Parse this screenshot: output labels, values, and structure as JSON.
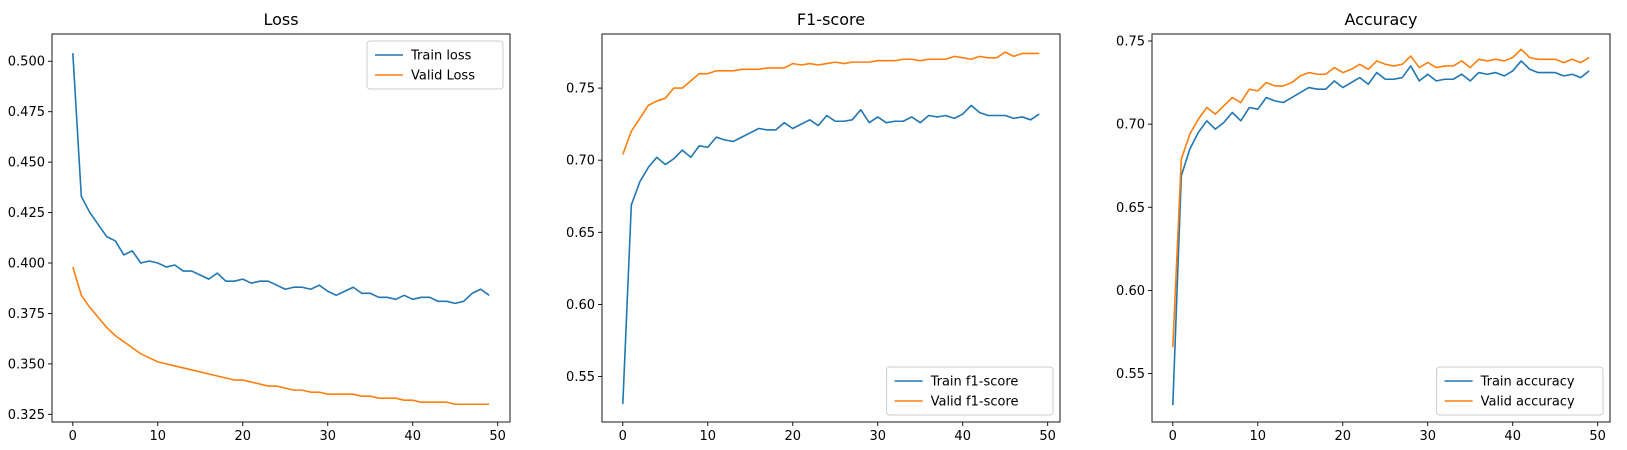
{
  "chart_data": [
    {
      "type": "line",
      "title": "Loss",
      "xlabel": "",
      "ylabel": "",
      "xlim": [
        -2.45,
        51.45
      ],
      "ylim": [
        0.3212,
        0.5135
      ],
      "xticks": [
        0,
        10,
        20,
        30,
        40,
        50
      ],
      "yticks": [
        0.325,
        0.35,
        0.375,
        0.4,
        0.425,
        0.45,
        0.475,
        0.5
      ],
      "ytick_labels": [
        "0.325",
        "0.350",
        "0.375",
        "0.400",
        "0.425",
        "0.450",
        "0.475",
        "0.500"
      ],
      "grid": false,
      "legend": "top-right",
      "colors": {
        "train": "#1f77b4",
        "valid": "#ff7f0e"
      },
      "series": [
        {
          "name": "Train loss",
          "x": [
            0,
            1,
            2,
            3,
            4,
            5,
            6,
            7,
            8,
            9,
            10,
            11,
            12,
            13,
            14,
            15,
            16,
            17,
            18,
            19,
            20,
            21,
            22,
            23,
            24,
            25,
            26,
            27,
            28,
            29,
            30,
            31,
            32,
            33,
            34,
            35,
            36,
            37,
            38,
            39,
            40,
            41,
            42,
            43,
            44,
            45,
            46,
            47,
            48,
            49
          ],
          "values": [
            0.504,
            0.433,
            0.425,
            0.419,
            0.413,
            0.411,
            0.404,
            0.406,
            0.4,
            0.401,
            0.4,
            0.398,
            0.399,
            0.396,
            0.396,
            0.394,
            0.392,
            0.395,
            0.391,
            0.391,
            0.392,
            0.39,
            0.391,
            0.391,
            0.389,
            0.387,
            0.388,
            0.388,
            0.387,
            0.389,
            0.386,
            0.384,
            0.386,
            0.388,
            0.385,
            0.385,
            0.383,
            0.383,
            0.382,
            0.384,
            0.382,
            0.383,
            0.383,
            0.381,
            0.381,
            0.38,
            0.381,
            0.385,
            0.387,
            0.384
          ]
        },
        {
          "name": "Valid Loss",
          "x": [
            0,
            1,
            2,
            3,
            4,
            5,
            6,
            7,
            8,
            9,
            10,
            11,
            12,
            13,
            14,
            15,
            16,
            17,
            18,
            19,
            20,
            21,
            22,
            23,
            24,
            25,
            26,
            27,
            28,
            29,
            30,
            31,
            32,
            33,
            34,
            35,
            36,
            37,
            38,
            39,
            40,
            41,
            42,
            43,
            44,
            45,
            46,
            47,
            48,
            49
          ],
          "values": [
            0.398,
            0.384,
            0.378,
            0.373,
            0.368,
            0.364,
            0.361,
            0.358,
            0.355,
            0.353,
            0.351,
            0.35,
            0.349,
            0.348,
            0.347,
            0.346,
            0.345,
            0.344,
            0.343,
            0.342,
            0.342,
            0.341,
            0.34,
            0.339,
            0.339,
            0.338,
            0.337,
            0.337,
            0.336,
            0.336,
            0.335,
            0.335,
            0.335,
            0.335,
            0.334,
            0.334,
            0.333,
            0.333,
            0.333,
            0.332,
            0.332,
            0.331,
            0.331,
            0.331,
            0.331,
            0.33,
            0.33,
            0.33,
            0.33,
            0.33
          ]
        }
      ]
    },
    {
      "type": "line",
      "title": "F1-score",
      "xlabel": "",
      "ylabel": "",
      "xlim": [
        -2.45,
        51.45
      ],
      "ylim": [
        0.5185,
        0.7875
      ],
      "xticks": [
        0,
        10,
        20,
        30,
        40,
        50
      ],
      "yticks": [
        0.55,
        0.6,
        0.65,
        0.7,
        0.75
      ],
      "ytick_labels": [
        "0.55",
        "0.60",
        "0.65",
        "0.70",
        "0.75"
      ],
      "grid": false,
      "legend": "bottom-right",
      "colors": {
        "train": "#1f77b4",
        "valid": "#ff7f0e"
      },
      "series": [
        {
          "name": "Train f1-score",
          "x": [
            0,
            1,
            2,
            3,
            4,
            5,
            6,
            7,
            8,
            9,
            10,
            11,
            12,
            13,
            14,
            15,
            16,
            17,
            18,
            19,
            20,
            21,
            22,
            23,
            24,
            25,
            26,
            27,
            28,
            29,
            30,
            31,
            32,
            33,
            34,
            35,
            36,
            37,
            38,
            39,
            40,
            41,
            42,
            43,
            44,
            45,
            46,
            47,
            48,
            49
          ],
          "values": [
            0.531,
            0.669,
            0.685,
            0.695,
            0.702,
            0.697,
            0.701,
            0.707,
            0.702,
            0.71,
            0.709,
            0.716,
            0.714,
            0.713,
            0.716,
            0.719,
            0.722,
            0.721,
            0.721,
            0.726,
            0.722,
            0.725,
            0.728,
            0.724,
            0.731,
            0.727,
            0.727,
            0.728,
            0.735,
            0.726,
            0.73,
            0.726,
            0.727,
            0.727,
            0.73,
            0.726,
            0.731,
            0.73,
            0.731,
            0.729,
            0.732,
            0.738,
            0.733,
            0.731,
            0.731,
            0.731,
            0.729,
            0.73,
            0.728,
            0.732
          ]
        },
        {
          "name": "Valid f1-score",
          "x": [
            0,
            1,
            2,
            3,
            4,
            5,
            6,
            7,
            8,
            9,
            10,
            11,
            12,
            13,
            14,
            15,
            16,
            17,
            18,
            19,
            20,
            21,
            22,
            23,
            24,
            25,
            26,
            27,
            28,
            29,
            30,
            31,
            32,
            33,
            34,
            35,
            36,
            37,
            38,
            39,
            40,
            41,
            42,
            43,
            44,
            45,
            46,
            47,
            48,
            49
          ],
          "values": [
            0.704,
            0.72,
            0.729,
            0.738,
            0.741,
            0.743,
            0.75,
            0.75,
            0.755,
            0.76,
            0.76,
            0.762,
            0.762,
            0.762,
            0.763,
            0.763,
            0.763,
            0.764,
            0.764,
            0.764,
            0.767,
            0.766,
            0.767,
            0.766,
            0.767,
            0.768,
            0.767,
            0.768,
            0.768,
            0.768,
            0.769,
            0.769,
            0.769,
            0.77,
            0.77,
            0.769,
            0.77,
            0.77,
            0.77,
            0.772,
            0.771,
            0.77,
            0.772,
            0.771,
            0.771,
            0.775,
            0.772,
            0.774,
            0.774,
            0.774
          ]
        }
      ]
    },
    {
      "type": "line",
      "title": "Accuracy",
      "xlabel": "",
      "ylabel": "",
      "xlim": [
        -2.45,
        51.45
      ],
      "ylim": [
        0.5209,
        0.7542
      ],
      "xticks": [
        0,
        10,
        20,
        30,
        40,
        50
      ],
      "yticks": [
        0.55,
        0.6,
        0.65,
        0.7,
        0.75
      ],
      "ytick_labels": [
        "0.55",
        "0.60",
        "0.65",
        "0.70",
        "0.75"
      ],
      "grid": false,
      "legend": "bottom-right",
      "colors": {
        "train": "#1f77b4",
        "valid": "#ff7f0e"
      },
      "series": [
        {
          "name": "Train accuracy",
          "x": [
            0,
            1,
            2,
            3,
            4,
            5,
            6,
            7,
            8,
            9,
            10,
            11,
            12,
            13,
            14,
            15,
            16,
            17,
            18,
            19,
            20,
            21,
            22,
            23,
            24,
            25,
            26,
            27,
            28,
            29,
            30,
            31,
            32,
            33,
            34,
            35,
            36,
            37,
            38,
            39,
            40,
            41,
            42,
            43,
            44,
            45,
            46,
            47,
            48,
            49
          ],
          "values": [
            0.531,
            0.669,
            0.685,
            0.695,
            0.702,
            0.697,
            0.701,
            0.707,
            0.702,
            0.71,
            0.709,
            0.716,
            0.714,
            0.713,
            0.716,
            0.719,
            0.722,
            0.721,
            0.721,
            0.726,
            0.722,
            0.725,
            0.728,
            0.724,
            0.731,
            0.727,
            0.727,
            0.728,
            0.735,
            0.726,
            0.73,
            0.726,
            0.727,
            0.727,
            0.73,
            0.726,
            0.731,
            0.73,
            0.731,
            0.729,
            0.732,
            0.738,
            0.733,
            0.731,
            0.731,
            0.731,
            0.729,
            0.73,
            0.728,
            0.732
          ]
        },
        {
          "name": "Valid accuracy",
          "x": [
            0,
            1,
            2,
            3,
            4,
            5,
            6,
            7,
            8,
            9,
            10,
            11,
            12,
            13,
            14,
            15,
            16,
            17,
            18,
            19,
            20,
            21,
            22,
            23,
            24,
            25,
            26,
            27,
            28,
            29,
            30,
            31,
            32,
            33,
            34,
            35,
            36,
            37,
            38,
            39,
            40,
            41,
            42,
            43,
            44,
            45,
            46,
            47,
            48,
            49
          ],
          "values": [
            0.566,
            0.679,
            0.694,
            0.703,
            0.71,
            0.706,
            0.711,
            0.716,
            0.713,
            0.721,
            0.72,
            0.725,
            0.723,
            0.723,
            0.725,
            0.729,
            0.731,
            0.73,
            0.73,
            0.734,
            0.731,
            0.733,
            0.736,
            0.733,
            0.738,
            0.736,
            0.735,
            0.736,
            0.741,
            0.734,
            0.737,
            0.734,
            0.735,
            0.735,
            0.738,
            0.734,
            0.739,
            0.738,
            0.739,
            0.738,
            0.74,
            0.745,
            0.74,
            0.739,
            0.739,
            0.739,
            0.737,
            0.739,
            0.737,
            0.74
          ]
        }
      ]
    }
  ]
}
